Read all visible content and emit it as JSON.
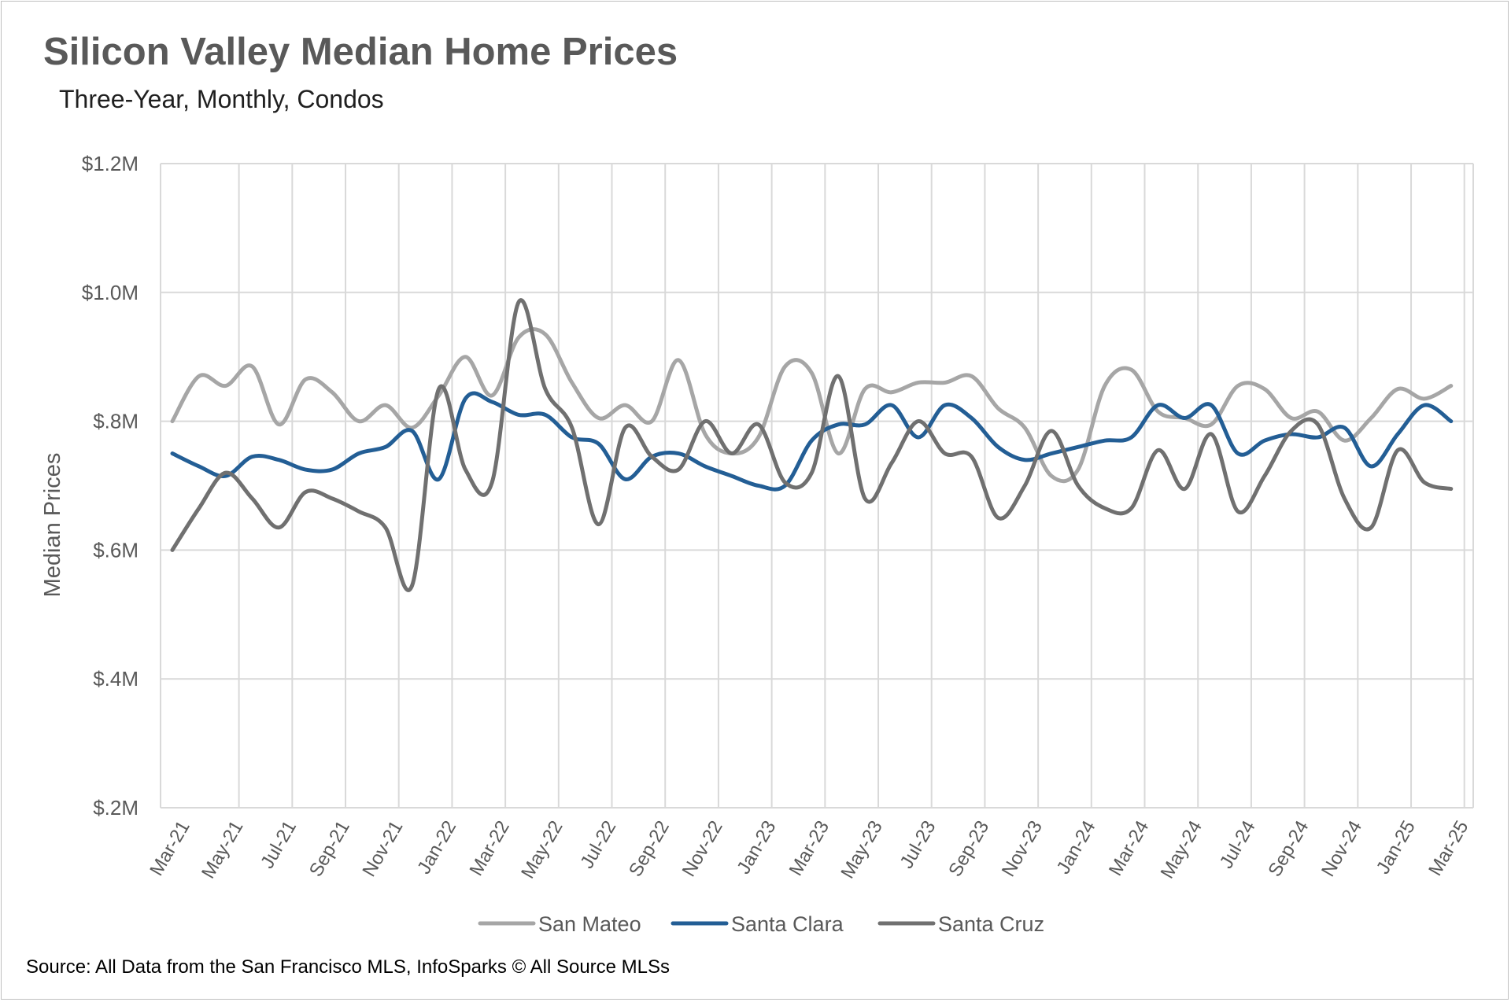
{
  "title": "Silicon Valley Median Home Prices",
  "subtitle": "Three-Year, Monthly, Condos",
  "source": "Source: All Data from the San Francisco MLS, InfoSparks © All Source MLSs",
  "chart_data": {
    "type": "line",
    "title": "Silicon Valley Median Home Prices",
    "subtitle": "Three-Year, Monthly, Condos",
    "xlabel": "",
    "ylabel": "Median Prices",
    "ylim": [
      200000,
      1200000
    ],
    "yticks": [
      200000,
      400000,
      600000,
      800000,
      1000000,
      1200000
    ],
    "ytick_labels": [
      "$.2M",
      "$.4M",
      "$.6M",
      "$.8M",
      "$1.0M",
      "$1.2M"
    ],
    "grid": "both",
    "legend_position": "bottom",
    "smooth": true,
    "x": [
      "Mar-21",
      "Apr-21",
      "May-21",
      "Jun-21",
      "Jul-21",
      "Aug-21",
      "Sep-21",
      "Oct-21",
      "Nov-21",
      "Dec-21",
      "Jan-22",
      "Feb-22",
      "Mar-22",
      "Apr-22",
      "May-22",
      "Jun-22",
      "Jul-22",
      "Aug-22",
      "Sep-22",
      "Oct-22",
      "Nov-22",
      "Dec-22",
      "Jan-23",
      "Feb-23",
      "Mar-23",
      "Apr-23",
      "May-23",
      "Jun-23",
      "Jul-23",
      "Aug-23",
      "Sep-23",
      "Oct-23",
      "Nov-23",
      "Dec-23",
      "Jan-24",
      "Feb-24",
      "Mar-24",
      "Apr-24",
      "May-24",
      "Jun-24",
      "Jul-24",
      "Aug-24",
      "Sep-24",
      "Oct-24",
      "Nov-24",
      "Dec-24",
      "Jan-25",
      "Feb-25",
      "Mar-25"
    ],
    "x_tick_labels": [
      "Mar-21",
      "May-21",
      "Jul-21",
      "Sep-21",
      "Nov-21",
      "Jan-22",
      "Mar-22",
      "May-22",
      "Jul-22",
      "Sep-22",
      "Nov-22",
      "Jan-23",
      "Mar-23",
      "May-23",
      "Jul-23",
      "Sep-23",
      "Nov-23",
      "Jan-24",
      "Mar-24",
      "May-24",
      "Jul-24",
      "Sep-24",
      "Nov-24",
      "Jan-25",
      "Mar-25"
    ],
    "series": [
      {
        "name": "San Mateo",
        "color": "#a6a6a6",
        "values": [
          800000,
          870000,
          855000,
          885000,
          795000,
          865000,
          845000,
          800000,
          825000,
          790000,
          840000,
          900000,
          840000,
          930000,
          935000,
          860000,
          805000,
          825000,
          800000,
          895000,
          780000,
          750000,
          775000,
          885000,
          875000,
          750000,
          850000,
          845000,
          860000,
          860000,
          870000,
          820000,
          790000,
          715000,
          725000,
          855000,
          880000,
          815000,
          805000,
          795000,
          855000,
          850000,
          805000,
          815000,
          770000,
          805000,
          850000,
          835000,
          855000
        ]
      },
      {
        "name": "Santa Clara",
        "color": "#235e95",
        "values": [
          750000,
          730000,
          715000,
          745000,
          740000,
          725000,
          725000,
          750000,
          760000,
          785000,
          710000,
          835000,
          830000,
          810000,
          810000,
          775000,
          765000,
          710000,
          745000,
          750000,
          730000,
          715000,
          700000,
          700000,
          770000,
          795000,
          795000,
          825000,
          775000,
          825000,
          805000,
          760000,
          740000,
          750000,
          760000,
          770000,
          775000,
          825000,
          805000,
          825000,
          750000,
          770000,
          780000,
          775000,
          790000,
          730000,
          780000,
          825000,
          800000
        ]
      },
      {
        "name": "Santa Cruz",
        "color": "#707070",
        "values": [
          600000,
          665000,
          720000,
          680000,
          635000,
          690000,
          680000,
          660000,
          635000,
          545000,
          850000,
          725000,
          705000,
          985000,
          850000,
          790000,
          640000,
          790000,
          745000,
          725000,
          800000,
          750000,
          795000,
          705000,
          720000,
          870000,
          680000,
          735000,
          800000,
          750000,
          745000,
          650000,
          700000,
          785000,
          700000,
          665000,
          665000,
          755000,
          695000,
          780000,
          660000,
          715000,
          785000,
          795000,
          680000,
          635000,
          755000,
          705000,
          695000
        ]
      }
    ]
  }
}
